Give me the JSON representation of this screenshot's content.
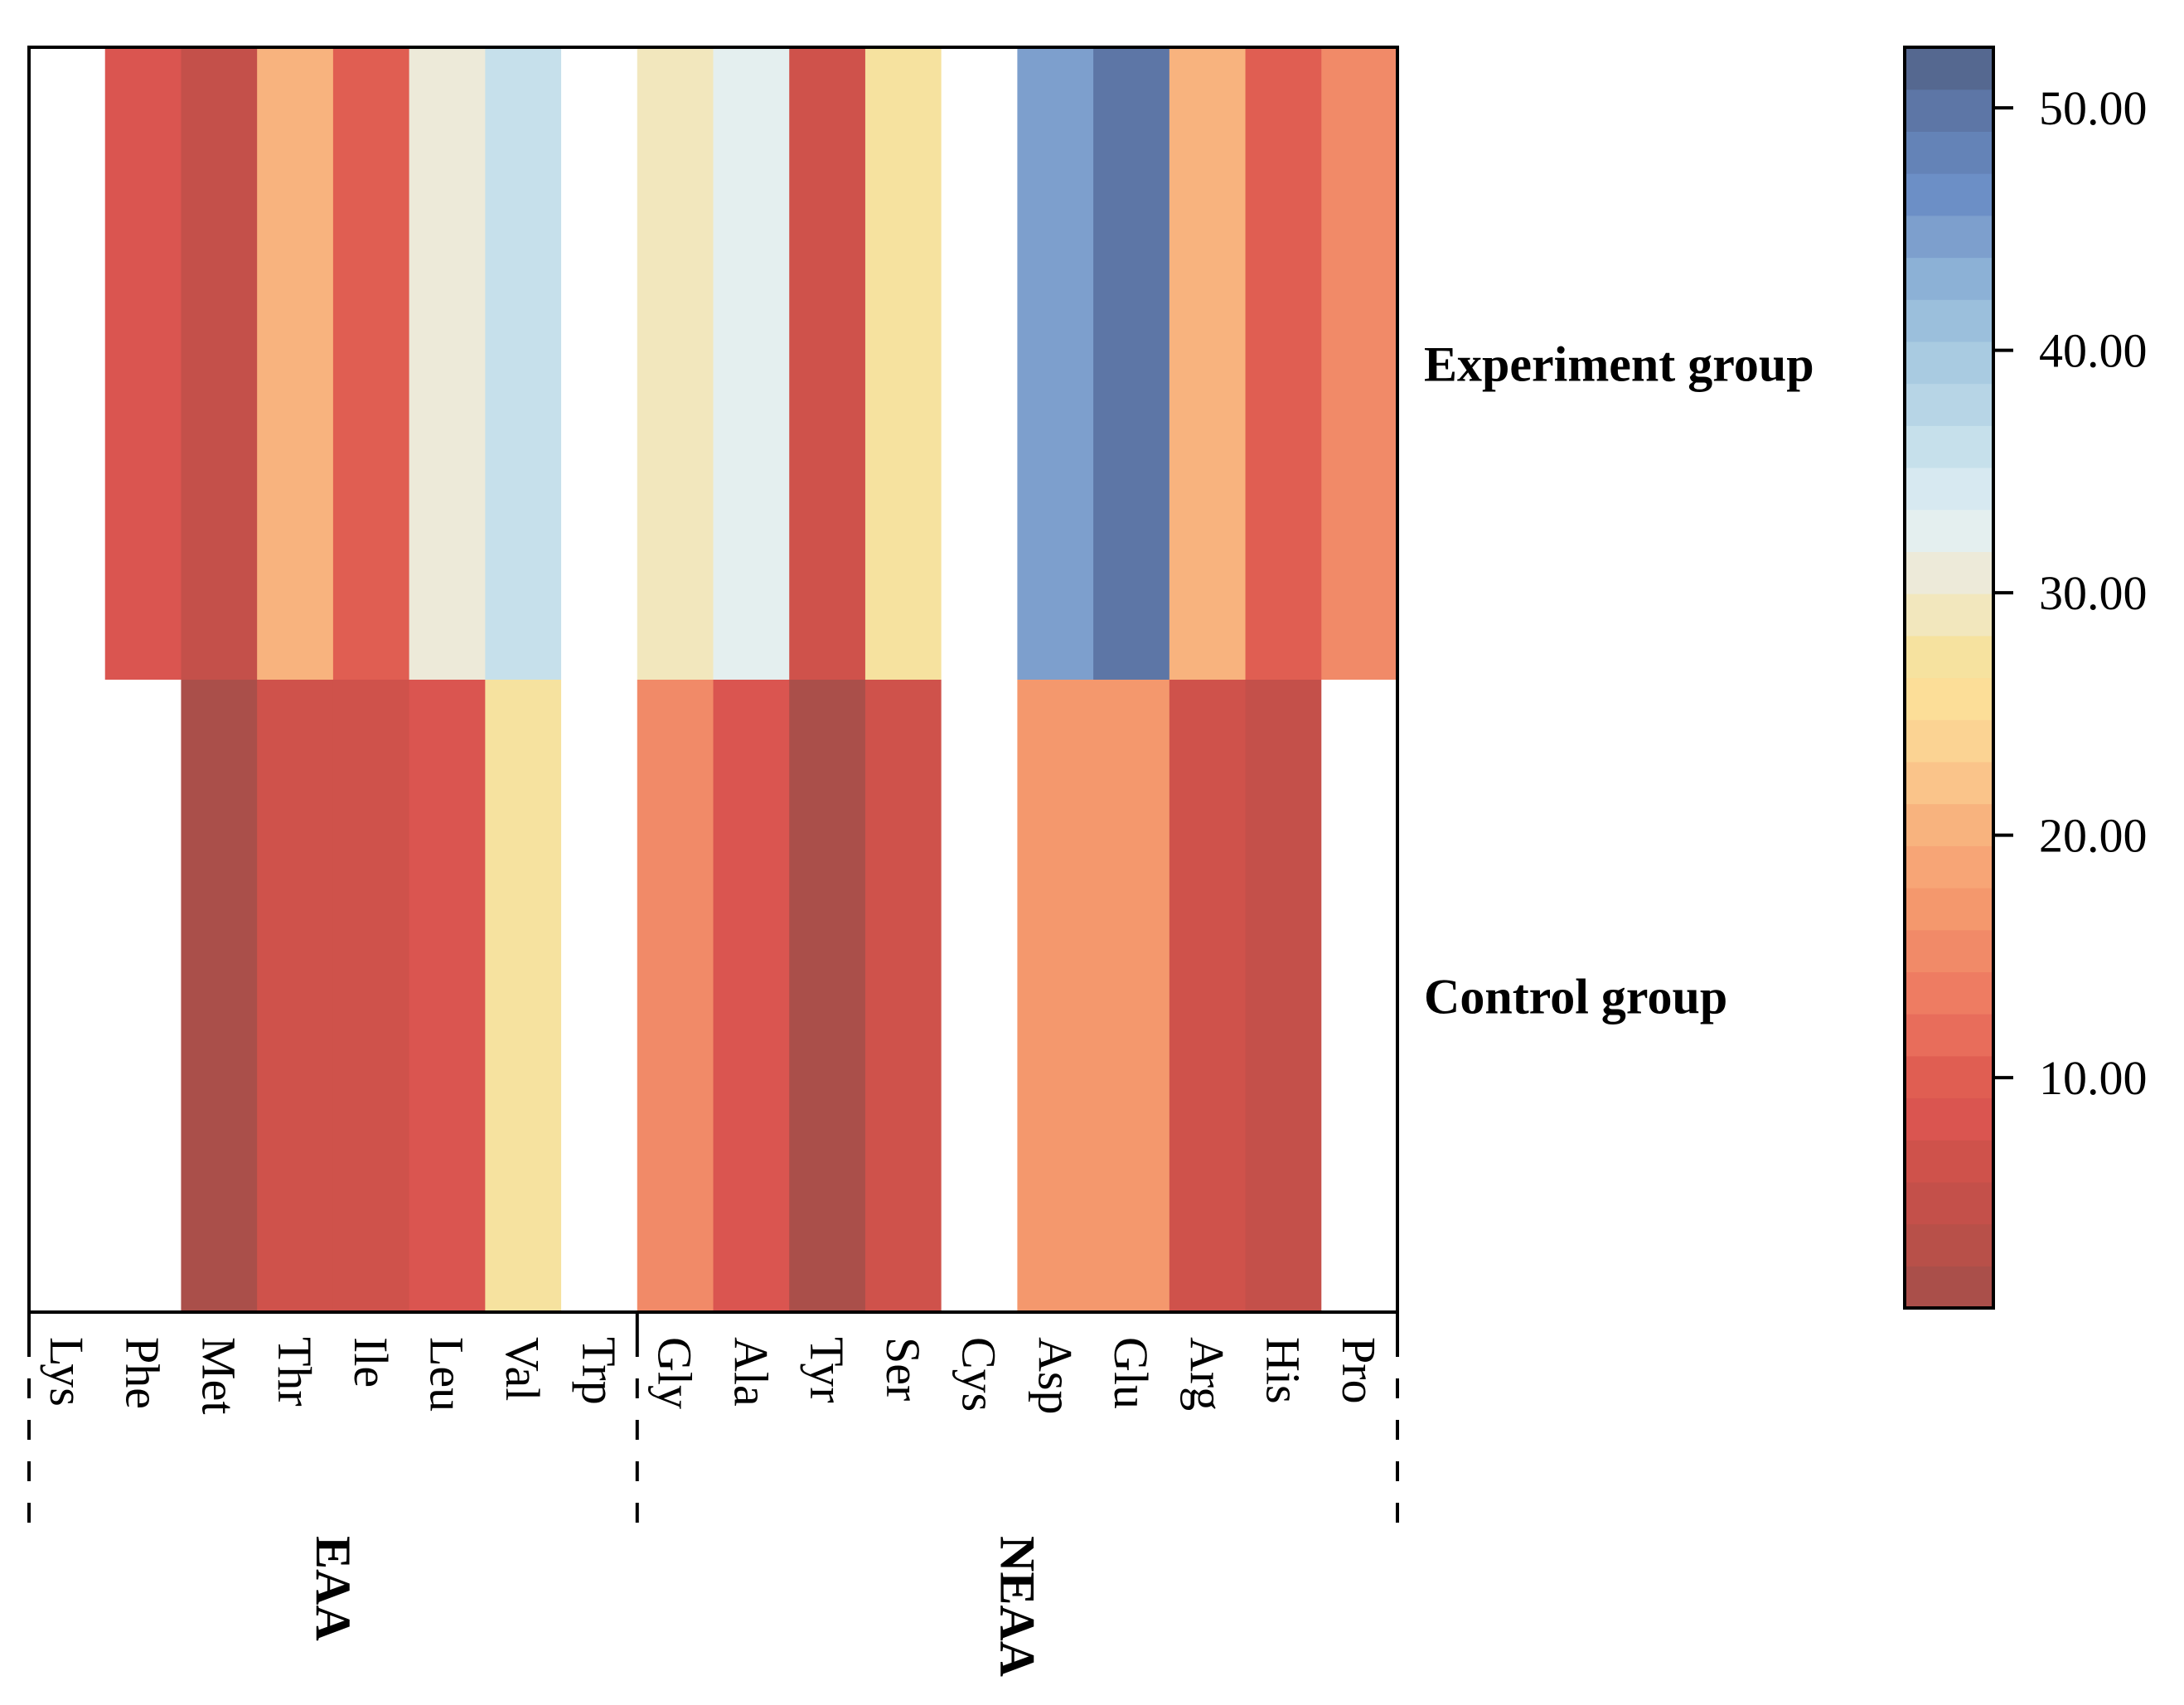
{
  "chart_data": {
    "type": "heatmap",
    "columns": [
      "Lys",
      "Phe",
      "Met",
      "Thr",
      "Ile",
      "Leu",
      "Val",
      "Trp",
      "Gly",
      "Ala",
      "Tyr",
      "Ser",
      "Cys",
      "Asp",
      "Glu",
      "Arg",
      "His",
      "Pro"
    ],
    "rows": [
      "Experiment group",
      "Control group"
    ],
    "values": [
      [
        null,
        8.0,
        4.5,
        20.5,
        10.5,
        31.5,
        36.0,
        null,
        29.5,
        33.0,
        6.0,
        26.5,
        null,
        45.5,
        49.5,
        20.5,
        10.5,
        14.5
      ],
      [
        null,
        null,
        2.0,
        7.0,
        7.0,
        8.5,
        28.0,
        null,
        14.5,
        8.5,
        2.0,
        7.0,
        null,
        17.5,
        17.5,
        7.0,
        4.0,
        null
      ]
    ],
    "groups": [
      {
        "label": "EAA",
        "start": 0,
        "end": 7
      },
      {
        "label": "NEAA",
        "start": 8,
        "end": 17
      }
    ],
    "colorbar": {
      "min": 0.5,
      "max": 52.5,
      "ticks": [
        "10.00",
        "20.00",
        "30.00",
        "40.00",
        "50.00"
      ],
      "tick_values": [
        10,
        20,
        30,
        40,
        50
      ],
      "steps": 30,
      "colors": [
        "#aa4f4a",
        "#b85049",
        "#c4504a",
        "#cf524b",
        "#da5550",
        "#e05e52",
        "#e86d5b",
        "#ee7c62",
        "#f18a68",
        "#f4986d",
        "#f7a576",
        "#f8b37e",
        "#fac48a",
        "#fbd393",
        "#fcde98",
        "#f6e29f",
        "#f2e7bd",
        "#edead9",
        "#e4efef",
        "#d7e9f1",
        "#c6e0eb",
        "#b7d5e6",
        "#a9cbe1",
        "#9bbfdc",
        "#8cb1d6",
        "#7d9fcd",
        "#6c8fc6",
        "#6483b7",
        "#5d76a6",
        "#556890"
      ]
    },
    "missing_color": "#ffffff"
  }
}
